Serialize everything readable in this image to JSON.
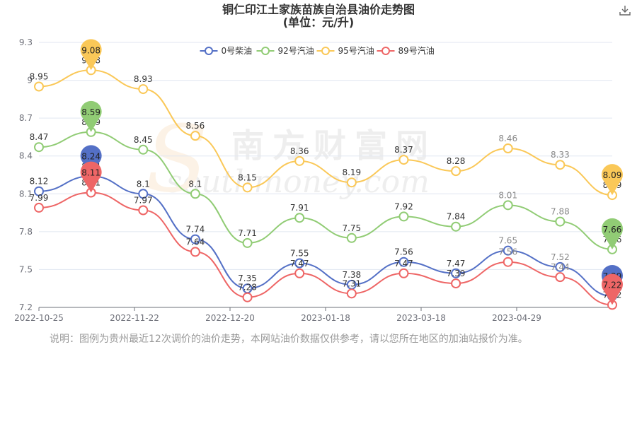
{
  "header": {
    "title": "铜仁印江土家族苗族自治县油价走势图",
    "subtitle": "(单位：元/升)"
  },
  "watermark": {
    "cn": "南方财富网",
    "en": "southmoney.com"
  },
  "note": "说明：图例为贵州最近12次调价的油价走势，本网站油价数据仅供参考，请以您所在地区的加油站报价为准。",
  "chart_data": {
    "type": "line",
    "x_tick_labels": [
      "2022-10-25",
      "2022-11-22",
      "2022-12-20",
      "2023-01-18",
      "2023-03-18",
      "2023-04-29"
    ],
    "ylim": [
      7.2,
      9.3
    ],
    "yticks": [
      "7.2",
      "7.5",
      "7.8",
      "8.1",
      "8.4",
      "8.7",
      "9",
      "9.3"
    ],
    "legend_position": "top-center",
    "grid": "horizontal",
    "series": [
      {
        "name": "0号柴油",
        "color": "#5470c6",
        "values": [
          8.12,
          8.24,
          8.1,
          7.74,
          7.35,
          7.55,
          7.38,
          7.56,
          7.47,
          7.65,
          7.52,
          7.29
        ],
        "max": "8.24",
        "min": "7.29"
      },
      {
        "name": "92号汽油",
        "color": "#91cc75",
        "values": [
          8.47,
          8.59,
          8.45,
          8.1,
          7.71,
          7.91,
          7.75,
          7.92,
          7.84,
          8.01,
          7.88,
          7.66
        ],
        "max": "8.59",
        "min": "7.66"
      },
      {
        "name": "95号汽油",
        "color": "#fac858",
        "values": [
          8.95,
          9.08,
          8.93,
          8.56,
          8.15,
          8.36,
          8.19,
          8.37,
          8.28,
          8.46,
          8.33,
          8.09
        ],
        "max": "9.08",
        "min": "8.09"
      },
      {
        "name": "89号汽油",
        "color": "#ee6666",
        "values": [
          7.99,
          8.11,
          7.97,
          7.64,
          7.28,
          7.47,
          7.31,
          7.47,
          7.39,
          7.56,
          7.44,
          7.22
        ],
        "max": "8.11",
        "min": "7.22"
      }
    ]
  }
}
